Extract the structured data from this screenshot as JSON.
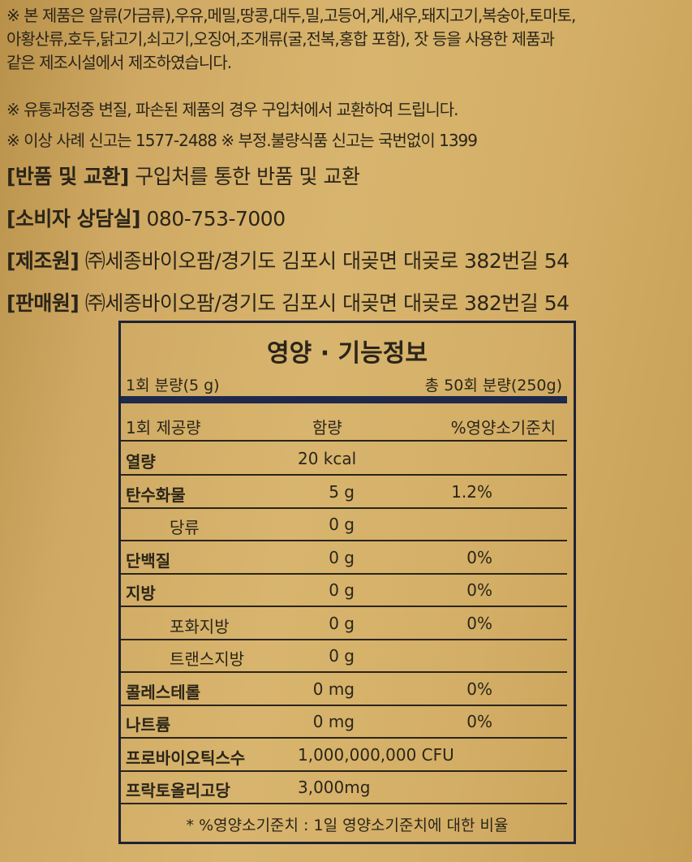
{
  "notices": [
    "※ 본 제품은 알류(가금류),우유,메밀,땅콩,대두,밀,고등어,게,새우,돼지고기,복숭아,토마토,",
    "아황산류,호두,닭고기,쇠고기,오징어,조개류(굴,전복,홍합 포함), 잣 등을 사용한 제품과",
    "같은 제조시설에서 제조하였습니다.",
    "※ 유통과정중 변질, 파손된 제품의 경우 구입처에서 교환하여 드립니다.",
    "※ 이상 사례 신고는 1577-2488  ※ 부정.불량식품 신고는 국번없이 1399"
  ],
  "info": [
    {
      "label": "[반품 및 교환]",
      "value": "구입처를 통한 반품 및 교환"
    },
    {
      "label": "[소비자 상담실]",
      "value": "080-753-7000"
    },
    {
      "label": "[제조원]",
      "value": "㈜세종바이오팜/경기도 김포시 대곶면 대곶로 382번길 54"
    },
    {
      "label": "[판매원]",
      "value": "㈜세종바이오팜/경기도 김포시 대곶면 대곶로 382번길 54"
    }
  ],
  "nutrition": {
    "title": "영양 · 기능정보",
    "serving": "1회 분량(5 g)",
    "total": "총 50회 분량(250g)",
    "headers": [
      "1회 제공량",
      "함량",
      "%영양소기준치"
    ],
    "rows": [
      {
        "name": "열량",
        "amount": "20 kcal",
        "pct": ""
      },
      {
        "name": "탄수화물",
        "amount": "5 g",
        "pct": "1.2%"
      },
      {
        "name": "당류",
        "amount": "0 g",
        "pct": ""
      },
      {
        "name": "단백질",
        "amount": "0 g",
        "pct": "0%"
      },
      {
        "name": "지방",
        "amount": "0 g",
        "pct": "0%"
      },
      {
        "name": "포화지방",
        "amount": "0 g",
        "pct": "0%"
      },
      {
        "name": "트랜스지방",
        "amount": "0 g",
        "pct": ""
      },
      {
        "name": "콜레스테롤",
        "amount": "0 mg",
        "pct": "0%"
      },
      {
        "name": "나트륨",
        "amount": "0 mg",
        "pct": "0%"
      },
      {
        "name": "프로바이오틱스수",
        "amount": "1,000,000,000 CFU",
        "pct": ""
      },
      {
        "name": "프락토올리고당",
        "amount": "3,000mg",
        "pct": ""
      }
    ],
    "footnote": "* %영양소기준치 : 1일 영양소기준치에 대한 비율"
  }
}
